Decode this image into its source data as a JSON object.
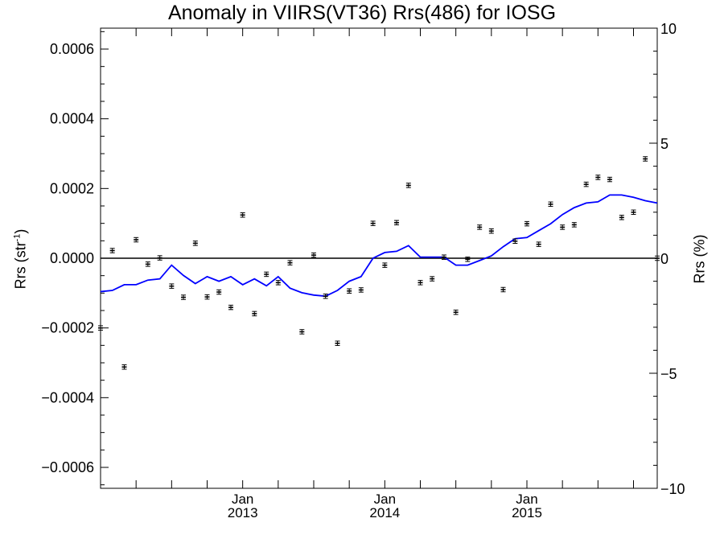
{
  "chart_data": {
    "type": "line",
    "title": "Anomaly in VIIRS(VT36) Rrs(486) for IOSG",
    "ylabel": "Rrs (str",
    "ylabel_sup": "-1",
    "ylabel_close": ")",
    "y2label": "Rrs (%)",
    "ylim": [
      -0.00066,
      0.00066
    ],
    "y2lim": [
      -10,
      10
    ],
    "yticks": [
      "0.0006",
      "0.0004",
      "0.0002",
      "0.0000",
      "−0.0002",
      "−0.0004",
      "−0.0006"
    ],
    "ytick_values": [
      0.0006,
      0.0004,
      0.0002,
      0.0,
      -0.0002,
      -0.0004,
      -0.0006
    ],
    "y2ticks": [
      "10",
      "5",
      "0",
      "−5",
      "−10"
    ],
    "y2tick_values": [
      10,
      5,
      0,
      -5,
      -10
    ],
    "xlim": [
      2012.0,
      2015.917
    ],
    "xticks": [
      {
        "value": 2013.0,
        "month": "Jan",
        "year": "2013"
      },
      {
        "value": 2014.0,
        "month": "Jan",
        "year": "2014"
      },
      {
        "value": 2015.0,
        "month": "Jan",
        "year": "2015"
      }
    ],
    "grid": false,
    "series": [
      {
        "kind": "points_with_errorbars",
        "color": "#000000",
        "axis": "left",
        "x": [
          2012.0,
          2012.083,
          2012.167,
          2012.25,
          2012.333,
          2012.417,
          2012.5,
          2012.583,
          2012.667,
          2012.75,
          2012.833,
          2012.917,
          2013.0,
          2013.083,
          2013.167,
          2013.25,
          2013.333,
          2013.417,
          2013.5,
          2013.583,
          2013.667,
          2013.75,
          2013.833,
          2013.917,
          2014.0,
          2014.083,
          2014.167,
          2014.25,
          2014.333,
          2014.417,
          2014.5,
          2014.583,
          2014.667,
          2014.75,
          2014.833,
          2014.917,
          2015.0,
          2015.083,
          2015.167,
          2015.25,
          2015.333,
          2015.417,
          2015.5,
          2015.583,
          2015.667,
          2015.75,
          2015.833,
          2015.917
        ],
        "y": [
          -0.0002,
          2.2e-05,
          -0.000312,
          5.3e-05,
          -1.7e-05,
          1e-06,
          -8e-05,
          -0.000112,
          4.3e-05,
          -0.000111,
          -9.7e-05,
          -0.000141,
          0.000124,
          -0.000159,
          -4.6e-05,
          -7e-05,
          -1.3e-05,
          -0.000211,
          9e-06,
          -0.000109,
          -0.000244,
          -9.4e-05,
          -9.1e-05,
          0.0001,
          -2e-05,
          0.000102,
          0.000209,
          -7e-05,
          -5.9e-05,
          3e-06,
          -0.000155,
          -3e-06,
          8.9e-05,
          7.8e-05,
          -9e-05,
          4.9e-05,
          9.9e-05,
          4e-05,
          0.000155,
          8.9e-05,
          9.6e-05,
          0.000212,
          0.000232,
          0.000226,
          0.000117,
          0.000132,
          0.000285,
          0.0
        ],
        "err": 4e-06
      },
      {
        "kind": "line",
        "color": "#0000ff",
        "axis": "right",
        "x": [
          2012.0,
          2012.083,
          2012.167,
          2012.25,
          2012.333,
          2012.417,
          2012.5,
          2012.583,
          2012.667,
          2012.75,
          2012.833,
          2012.917,
          2013.0,
          2013.083,
          2013.167,
          2013.25,
          2013.333,
          2013.417,
          2013.5,
          2013.583,
          2013.667,
          2013.75,
          2013.833,
          2013.917,
          2014.0,
          2014.083,
          2014.167,
          2014.25,
          2014.333,
          2014.417,
          2014.5,
          2014.583,
          2014.667,
          2014.75,
          2014.833,
          2014.917,
          2015.0,
          2015.083,
          2015.167,
          2015.25,
          2015.333,
          2015.417,
          2015.5,
          2015.583,
          2015.667,
          2015.75,
          2015.833,
          2015.917
        ],
        "y": [
          -1.45,
          -1.4,
          -1.15,
          -1.15,
          -0.95,
          -0.9,
          -0.3,
          -0.75,
          -1.1,
          -0.8,
          -1.0,
          -0.8,
          -1.15,
          -0.9,
          -1.2,
          -0.8,
          -1.3,
          -1.5,
          -1.6,
          -1.65,
          -1.4,
          -1.0,
          -0.8,
          0.0,
          0.25,
          0.3,
          0.55,
          0.05,
          0.05,
          0.05,
          -0.3,
          -0.3,
          -0.1,
          0.1,
          0.5,
          0.85,
          0.9,
          1.2,
          1.5,
          1.9,
          2.2,
          2.4,
          2.45,
          2.75,
          2.75,
          2.65,
          2.5,
          2.4
        ]
      }
    ]
  }
}
